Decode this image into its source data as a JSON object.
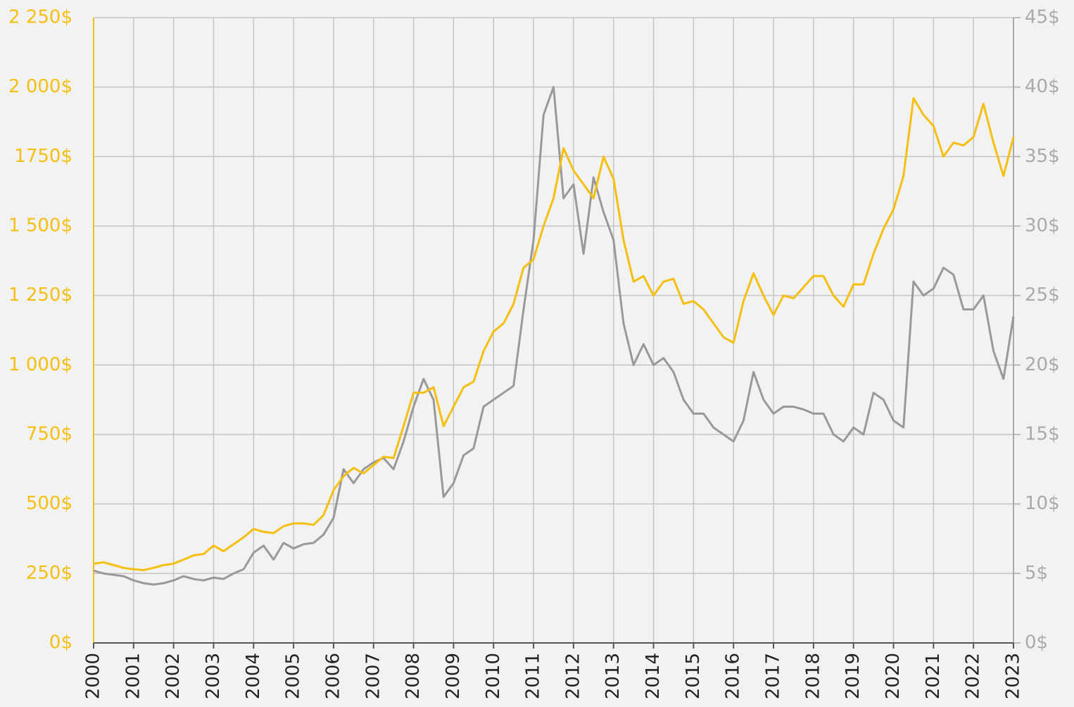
{
  "chart_data": {
    "type": "line",
    "x": [
      2000,
      2000.25,
      2000.5,
      2000.75,
      2001,
      2001.25,
      2001.5,
      2001.75,
      2002,
      2002.25,
      2002.5,
      2002.75,
      2003,
      2003.25,
      2003.5,
      2003.75,
      2004,
      2004.25,
      2004.5,
      2004.75,
      2005,
      2005.25,
      2005.5,
      2005.75,
      2006,
      2006.25,
      2006.5,
      2006.75,
      2007,
      2007.25,
      2007.5,
      2007.75,
      2008,
      2008.25,
      2008.5,
      2008.75,
      2009,
      2009.25,
      2009.5,
      2009.75,
      2010,
      2010.25,
      2010.5,
      2010.75,
      2011,
      2011.25,
      2011.5,
      2011.75,
      2012,
      2012.25,
      2012.5,
      2012.75,
      2013,
      2013.25,
      2013.5,
      2013.75,
      2014,
      2014.25,
      2014.5,
      2014.75,
      2015,
      2015.25,
      2015.5,
      2015.75,
      2016,
      2016.25,
      2016.5,
      2016.75,
      2017,
      2017.25,
      2017.5,
      2017.75,
      2018,
      2018.25,
      2018.5,
      2018.75,
      2019,
      2019.25,
      2019.5,
      2019.75,
      2020,
      2020.25,
      2020.5,
      2020.75,
      2021,
      2021.25,
      2021.5,
      2021.75,
      2022,
      2022.25,
      2022.5,
      2022.75,
      2023
    ],
    "series": [
      {
        "color": "#f5bf0f",
        "axis": "y",
        "values": [
          285,
          290,
          280,
          270,
          265,
          262,
          270,
          280,
          285,
          300,
          315,
          320,
          350,
          330,
          355,
          380,
          410,
          400,
          395,
          420,
          430,
          430,
          425,
          460,
          550,
          600,
          630,
          610,
          640,
          670,
          665,
          780,
          900,
          900,
          920,
          780,
          850,
          920,
          940,
          1050,
          1120,
          1150,
          1220,
          1350,
          1380,
          1500,
          1600,
          1780,
          1700,
          1650,
          1600,
          1750,
          1670,
          1450,
          1300,
          1320,
          1250,
          1300,
          1310,
          1220,
          1230,
          1200,
          1150,
          1100,
          1080,
          1230,
          1330,
          1250,
          1180,
          1250,
          1240,
          1280,
          1320,
          1320,
          1250,
          1210,
          1290,
          1290,
          1400,
          1490,
          1560,
          1680,
          1960,
          1900,
          1860,
          1750,
          1800,
          1790,
          1820,
          1940,
          1800,
          1680,
          1820
        ]
      },
      {
        "color": "#999999",
        "axis": "y2",
        "values": [
          5.2,
          5.0,
          4.9,
          4.8,
          4.5,
          4.3,
          4.2,
          4.3,
          4.5,
          4.8,
          4.6,
          4.5,
          4.7,
          4.6,
          5.0,
          5.3,
          6.5,
          7.0,
          6.0,
          7.2,
          6.8,
          7.1,
          7.2,
          7.8,
          9.0,
          12.5,
          11.5,
          12.5,
          13.0,
          13.3,
          12.5,
          14.5,
          17.0,
          19.0,
          17.5,
          10.5,
          11.5,
          13.5,
          14.0,
          17.0,
          17.5,
          18.0,
          18.5,
          24.0,
          29.0,
          38.0,
          40.0,
          32.0,
          33.0,
          28.0,
          33.5,
          31.0,
          29.0,
          23.0,
          20.0,
          21.5,
          20.0,
          20.5,
          19.5,
          17.5,
          16.5,
          16.5,
          15.5,
          15.0,
          14.5,
          16.0,
          19.5,
          17.5,
          16.5,
          17.0,
          17.0,
          16.8,
          16.5,
          16.5,
          15.0,
          14.5,
          15.5,
          15.0,
          18.0,
          17.5,
          16.0,
          15.5,
          26.0,
          25.0,
          25.5,
          27.0,
          26.5,
          24.0,
          24.0,
          25.0,
          21.0,
          19.0,
          23.5
        ]
      }
    ],
    "xlim": [
      2000,
      2023
    ],
    "xticks": [
      2000,
      2001,
      2002,
      2003,
      2004,
      2005,
      2006,
      2007,
      2008,
      2009,
      2010,
      2011,
      2012,
      2013,
      2014,
      2015,
      2016,
      2017,
      2018,
      2019,
      2020,
      2021,
      2022,
      2023
    ],
    "ylim": [
      0,
      2250
    ],
    "yticks": [
      {
        "value": 0,
        "label": "0$"
      },
      {
        "value": 250,
        "label": "250$"
      },
      {
        "value": 500,
        "label": "500$"
      },
      {
        "value": 750,
        "label": "750$"
      },
      {
        "value": 1000,
        "label": "1 000$"
      },
      {
        "value": 1250,
        "label": "1 250$"
      },
      {
        "value": 1500,
        "label": "1 500$"
      },
      {
        "value": 1750,
        "label": "1750$"
      },
      {
        "value": 2000,
        "label": "2 000$"
      },
      {
        "value": 2250,
        "label": "2 250$"
      }
    ],
    "y2lim": [
      0,
      45
    ],
    "y2ticks": [
      {
        "value": 0,
        "label": "0$"
      },
      {
        "value": 5,
        "label": "5$"
      },
      {
        "value": 10,
        "label": "10$"
      },
      {
        "value": 15,
        "label": "15$"
      },
      {
        "value": 20,
        "label": "20$"
      },
      {
        "value": 25,
        "label": "25$"
      },
      {
        "value": 30,
        "label": "30$"
      },
      {
        "value": 35,
        "label": "35$"
      },
      {
        "value": 40,
        "label": "40$"
      },
      {
        "value": 45,
        "label": "45$"
      }
    ],
    "grid": true
  }
}
